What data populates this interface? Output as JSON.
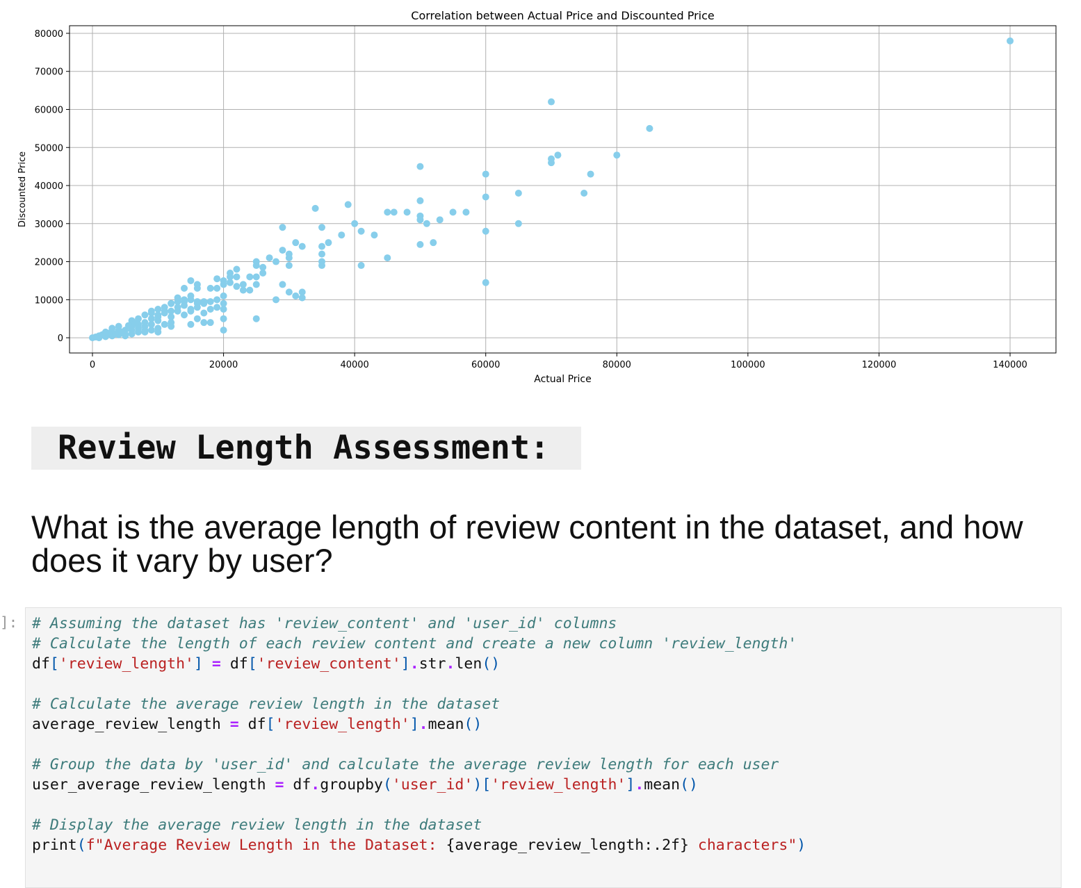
{
  "chart_data": {
    "type": "scatter",
    "title": "Correlation between Actual Price and Discounted Price",
    "xlabel": "Actual Price",
    "ylabel": "Discounted Price",
    "xlim": [
      -3500,
      147000
    ],
    "ylim": [
      -4000,
      82000
    ],
    "xticks": [
      0,
      20000,
      40000,
      60000,
      80000,
      100000,
      120000,
      140000
    ],
    "yticks": [
      0,
      10000,
      20000,
      30000,
      40000,
      50000,
      60000,
      70000,
      80000
    ],
    "grid": true,
    "marker_color": "#87ceeb",
    "points": [
      [
        140000,
        78000
      ],
      [
        70000,
        62000
      ],
      [
        85000,
        55000
      ],
      [
        80000,
        48000
      ],
      [
        71000,
        48000
      ],
      [
        70000,
        47000
      ],
      [
        70000,
        46000
      ],
      [
        76000,
        43000
      ],
      [
        60000,
        43000
      ],
      [
        50000,
        45000
      ],
      [
        65000,
        38000
      ],
      [
        75000,
        38000
      ],
      [
        60000,
        37000
      ],
      [
        50000,
        36000
      ],
      [
        39000,
        35000
      ],
      [
        34000,
        34000
      ],
      [
        45000,
        33000
      ],
      [
        46000,
        33000
      ],
      [
        48000,
        33000
      ],
      [
        55000,
        33000
      ],
      [
        57000,
        33000
      ],
      [
        50000,
        32000
      ],
      [
        53000,
        31000
      ],
      [
        50000,
        31000
      ],
      [
        51000,
        30000
      ],
      [
        65000,
        30000
      ],
      [
        40000,
        30000
      ],
      [
        29000,
        29000
      ],
      [
        35000,
        29000
      ],
      [
        41000,
        28000
      ],
      [
        60000,
        28000
      ],
      [
        43000,
        27000
      ],
      [
        38000,
        27000
      ],
      [
        31000,
        25000
      ],
      [
        36000,
        25000
      ],
      [
        52000,
        25000
      ],
      [
        50000,
        24500
      ],
      [
        32000,
        24000
      ],
      [
        35000,
        24000
      ],
      [
        29000,
        23000
      ],
      [
        30000,
        22000
      ],
      [
        35000,
        22000
      ],
      [
        30000,
        21000
      ],
      [
        45000,
        21000
      ],
      [
        27000,
        21000
      ],
      [
        28000,
        20000
      ],
      [
        25000,
        20000
      ],
      [
        35000,
        20000
      ],
      [
        30000,
        19000
      ],
      [
        41000,
        19000
      ],
      [
        35000,
        19000
      ],
      [
        25000,
        19000
      ],
      [
        26000,
        18500
      ],
      [
        22000,
        18000
      ],
      [
        21000,
        17000
      ],
      [
        26000,
        17000
      ],
      [
        25000,
        16000
      ],
      [
        21000,
        16000
      ],
      [
        22000,
        16000
      ],
      [
        24000,
        16000
      ],
      [
        19000,
        15500
      ],
      [
        20000,
        15000
      ],
      [
        15000,
        15000
      ],
      [
        21000,
        14500
      ],
      [
        60000,
        14500
      ],
      [
        29000,
        14000
      ],
      [
        25000,
        14000
      ],
      [
        23000,
        14000
      ],
      [
        22000,
        13500
      ],
      [
        20000,
        14000
      ],
      [
        16000,
        14000
      ],
      [
        14000,
        13000
      ],
      [
        18000,
        13000
      ],
      [
        19000,
        13000
      ],
      [
        16000,
        13000
      ],
      [
        24000,
        12500
      ],
      [
        23000,
        12500
      ],
      [
        30000,
        12000
      ],
      [
        32000,
        12000
      ],
      [
        31000,
        11000
      ],
      [
        32000,
        10500
      ],
      [
        15000,
        11000
      ],
      [
        20000,
        11000
      ],
      [
        19000,
        10000
      ],
      [
        28000,
        10000
      ],
      [
        13000,
        10500
      ],
      [
        14000,
        9500
      ],
      [
        16000,
        9000
      ],
      [
        17000,
        9000
      ],
      [
        18000,
        9500
      ],
      [
        20000,
        9000
      ],
      [
        12000,
        9000
      ],
      [
        19000,
        8000
      ],
      [
        16000,
        8000
      ],
      [
        20000,
        7500
      ],
      [
        15000,
        7500
      ],
      [
        18000,
        7500
      ],
      [
        15000,
        7000
      ],
      [
        13000,
        7000
      ],
      [
        17000,
        6500
      ],
      [
        11000,
        6500
      ],
      [
        14000,
        6000
      ],
      [
        10000,
        6000
      ],
      [
        12000,
        5500
      ],
      [
        16000,
        5000
      ],
      [
        25000,
        5000
      ],
      [
        20000,
        5000
      ],
      [
        17000,
        4000
      ],
      [
        18000,
        4000
      ],
      [
        10000,
        4500
      ],
      [
        6000,
        4500
      ],
      [
        12000,
        4000
      ],
      [
        15000,
        3500
      ],
      [
        8000,
        4000
      ],
      [
        9000,
        3500
      ],
      [
        11000,
        3500
      ],
      [
        6000,
        3000
      ],
      [
        12000,
        3000
      ],
      [
        10000,
        2500
      ],
      [
        7000,
        2500
      ],
      [
        5000,
        2000
      ],
      [
        8000,
        2000
      ],
      [
        4000,
        2000
      ],
      [
        9000,
        2000
      ],
      [
        20000,
        2000
      ],
      [
        10000,
        1500
      ],
      [
        3000,
        1500
      ],
      [
        7000,
        1500
      ],
      [
        5000,
        1000
      ],
      [
        2000,
        1000
      ],
      [
        6000,
        1000
      ],
      [
        1000,
        500
      ],
      [
        3000,
        500
      ],
      [
        8000,
        1500
      ],
      [
        2000,
        300
      ],
      [
        0,
        0
      ],
      [
        500,
        200
      ],
      [
        1000,
        0
      ],
      [
        1500,
        800
      ],
      [
        4000,
        800
      ],
      [
        5000,
        500
      ],
      [
        2500,
        1200
      ],
      [
        3500,
        1000
      ],
      [
        11000,
        7000
      ],
      [
        13000,
        8000
      ],
      [
        9000,
        5000
      ],
      [
        7000,
        5000
      ],
      [
        8000,
        6000
      ],
      [
        11000,
        8000
      ],
      [
        12000,
        9000
      ],
      [
        10000,
        7500
      ],
      [
        9000,
        7000
      ],
      [
        7000,
        3500
      ],
      [
        6000,
        2000
      ],
      [
        4500,
        1500
      ],
      [
        14000,
        8500
      ],
      [
        16000,
        9500
      ],
      [
        13000,
        9500
      ],
      [
        15000,
        10000
      ],
      [
        14000,
        10000
      ],
      [
        17000,
        9500
      ],
      [
        12000,
        7000
      ],
      [
        9000,
        6500
      ],
      [
        10000,
        5500
      ],
      [
        8000,
        3000
      ],
      [
        6500,
        3800
      ],
      [
        5500,
        3200
      ],
      [
        3000,
        2500
      ],
      [
        4000,
        3000
      ],
      [
        2000,
        1500
      ]
    ]
  },
  "markdown": {
    "heading": "Review Length Assessment:",
    "question": "What is the average length of review content in the dataset, and how does it vary by user?"
  },
  "cell": {
    "prompt": "]:",
    "lines": [
      [
        [
          "cm",
          "# Assuming the dataset has 'review_content' and 'user_id' columns"
        ]
      ],
      [
        [
          "cm",
          "# Calculate the length of each review content and create a new column 'review_length'"
        ]
      ],
      [
        [
          "tx",
          "df"
        ],
        [
          "pn",
          "["
        ],
        [
          "st",
          "'review_length'"
        ],
        [
          "pn",
          "]"
        ],
        [
          "tx",
          " "
        ],
        [
          "op",
          "="
        ],
        [
          "tx",
          " df"
        ],
        [
          "pn",
          "["
        ],
        [
          "st",
          "'review_content'"
        ],
        [
          "pn",
          "]"
        ],
        [
          "op",
          "."
        ],
        [
          "tx",
          "str"
        ],
        [
          "op",
          "."
        ],
        [
          "tx",
          "len"
        ],
        [
          "pn",
          "()"
        ]
      ],
      [],
      [
        [
          "cm",
          "# Calculate the average review length in the dataset"
        ]
      ],
      [
        [
          "tx",
          "average_review_length "
        ],
        [
          "op",
          "="
        ],
        [
          "tx",
          " df"
        ],
        [
          "pn",
          "["
        ],
        [
          "st",
          "'review_length'"
        ],
        [
          "pn",
          "]"
        ],
        [
          "op",
          "."
        ],
        [
          "tx",
          "mean"
        ],
        [
          "pn",
          "()"
        ]
      ],
      [],
      [
        [
          "cm",
          "# Group the data by 'user_id' and calculate the average review length for each user"
        ]
      ],
      [
        [
          "tx",
          "user_average_review_length "
        ],
        [
          "op",
          "="
        ],
        [
          "tx",
          " df"
        ],
        [
          "op",
          "."
        ],
        [
          "tx",
          "groupby"
        ],
        [
          "pn",
          "("
        ],
        [
          "st",
          "'user_id'"
        ],
        [
          "pn",
          ")["
        ],
        [
          "st",
          "'review_length'"
        ],
        [
          "pn",
          "]"
        ],
        [
          "op",
          "."
        ],
        [
          "tx",
          "mean"
        ],
        [
          "pn",
          "()"
        ]
      ],
      [],
      [
        [
          "cm",
          "# Display the average review length in the dataset"
        ]
      ],
      [
        [
          "tx",
          "print"
        ],
        [
          "pn",
          "("
        ],
        [
          "st",
          "f\"Average Review Length in the Dataset: "
        ],
        [
          "tx",
          "{average_review_length:.2f}"
        ],
        [
          "st",
          " characters\""
        ],
        [
          "pn",
          ")"
        ]
      ]
    ]
  }
}
